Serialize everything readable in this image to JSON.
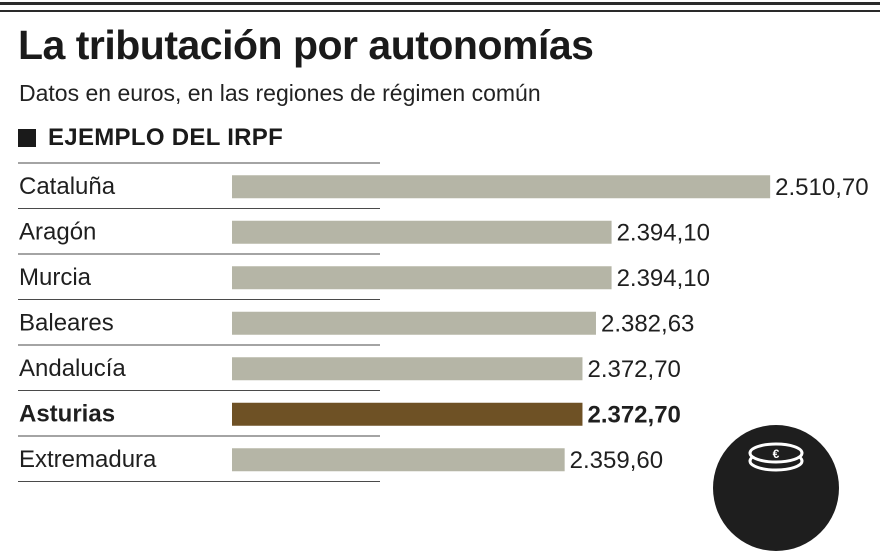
{
  "title": "La tributación por autonomías",
  "subtitle": "Datos en euros, en las regiones de régimen común",
  "section_label": "EJEMPLO DEL IRPF",
  "icon": "coins-icon",
  "colors": {
    "bar": "#b5b5a6",
    "highlight_bar": "#6e5125",
    "separator": "#4a4a4a"
  },
  "chart_data": {
    "type": "bar",
    "orientation": "horizontal",
    "title": "La tributación por autonomías",
    "subtitle": "Datos en euros, en las regiones de régimen común",
    "xlabel": "",
    "ylabel": "",
    "categories": [
      "Cataluña",
      "Aragón",
      "Murcia",
      "Baleares",
      "Andalucía",
      "Asturias",
      "Extremadura"
    ],
    "values": [
      2510.7,
      2394.1,
      2394.1,
      2382.63,
      2372.7,
      2372.7,
      2359.6
    ],
    "value_labels": [
      "2.510,70",
      "2.394,10",
      "2.394,10",
      "2.382,63",
      "2.372,70",
      "2.372,70",
      "2.359,60"
    ],
    "highlight": "Asturias",
    "xlim": [
      2115,
      2515
    ],
    "grid": false,
    "legend": "none"
  }
}
